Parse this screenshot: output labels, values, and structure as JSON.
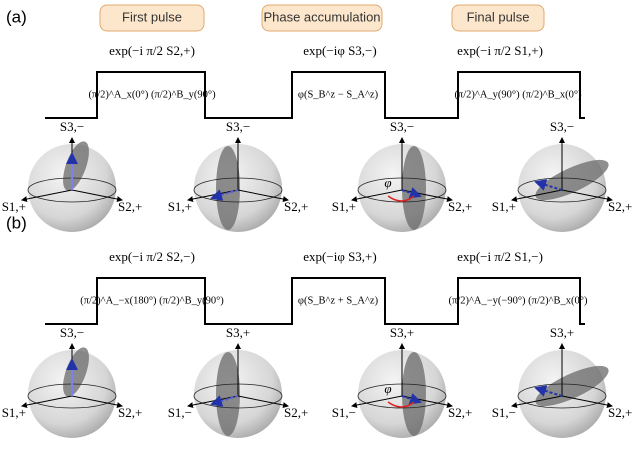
{
  "panel_labels": [
    "(a)",
    "(b)"
  ],
  "stage_labels": [
    "First pulse",
    "Phase accumulation",
    "Final pulse"
  ],
  "rows": [
    {
      "operators": [
        "exp(−i π/2 S2,+)",
        "exp(−iφ S3,−)",
        "exp(−i π/2 S1,+)"
      ],
      "boxes": [
        "(π/2)^A_x(0°) (π/2)^B_y(90°)",
        "φ(S_B^z − S_A^z)",
        "(π/2)^A_y(90°) (π/2)^B_x(0°)"
      ],
      "spheres": [
        {
          "top": "S3,−",
          "left": "S1,+",
          "right": "S2,+"
        },
        {
          "top": "S3,−",
          "left": "S1,+",
          "right": "S2,+"
        },
        {
          "top": "S3,−",
          "left": "S1,+",
          "right": "S2,+",
          "angle": "φ"
        },
        {
          "top": "S3,−",
          "left": "S1,+",
          "right": "S2,+"
        }
      ]
    },
    {
      "operators": [
        "exp(−i π/2 S2,−)",
        "exp(−iφ S3,+)",
        "exp(−i π/2 S1,−)"
      ],
      "boxes": [
        "(π/2)^A_−x(180°) (π/2)^B_y(90°)",
        "φ(S_B^z + S_A^z)",
        "(π/2)^A_−y(−90°) (π/2)^B_x(0°)"
      ],
      "spheres": [
        {
          "top": "S3,−",
          "left": "S1,+",
          "right": "S2,+"
        },
        {
          "top": "S3,+",
          "left": "S1,−",
          "right": "S2,+"
        },
        {
          "top": "S3,+",
          "left": "S1,−",
          "right": "S2,+",
          "angle": "φ"
        },
        {
          "top": "S3,+",
          "left": "S1,−",
          "right": "S2,+"
        }
      ]
    }
  ]
}
